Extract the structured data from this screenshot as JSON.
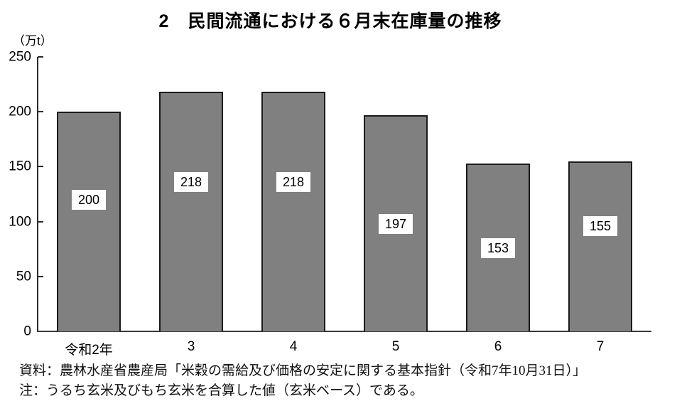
{
  "chart_data": {
    "type": "bar",
    "title": "2　民間流通における６月末在庫量の推移",
    "unit_label": "（万t）",
    "categories": [
      "令和2年",
      "3",
      "4",
      "5",
      "6",
      "7"
    ],
    "values": [
      200,
      218,
      218,
      197,
      153,
      155
    ],
    "value_labels": [
      "200",
      "218",
      "218",
      "197",
      "153",
      "155"
    ],
    "ylabel": "",
    "xlabel": "",
    "ylim": [
      0,
      250
    ],
    "yticks": [
      0,
      50,
      100,
      150,
      200,
      250
    ],
    "grid": false,
    "legend_position": "none",
    "bar_color": "#808080",
    "bar_border_color": "#1a1a1a",
    "value_label_y_positions": [
      120,
      136,
      136,
      98,
      76,
      96
    ]
  },
  "notes": {
    "source": "資料：農林水産省農産局「米穀の需給及び価格の安定に関する基本指針（令和7年10月31日）」",
    "note": "注：うるち玄米及びもち玄米を合算した値（玄米ベース）である。"
  }
}
